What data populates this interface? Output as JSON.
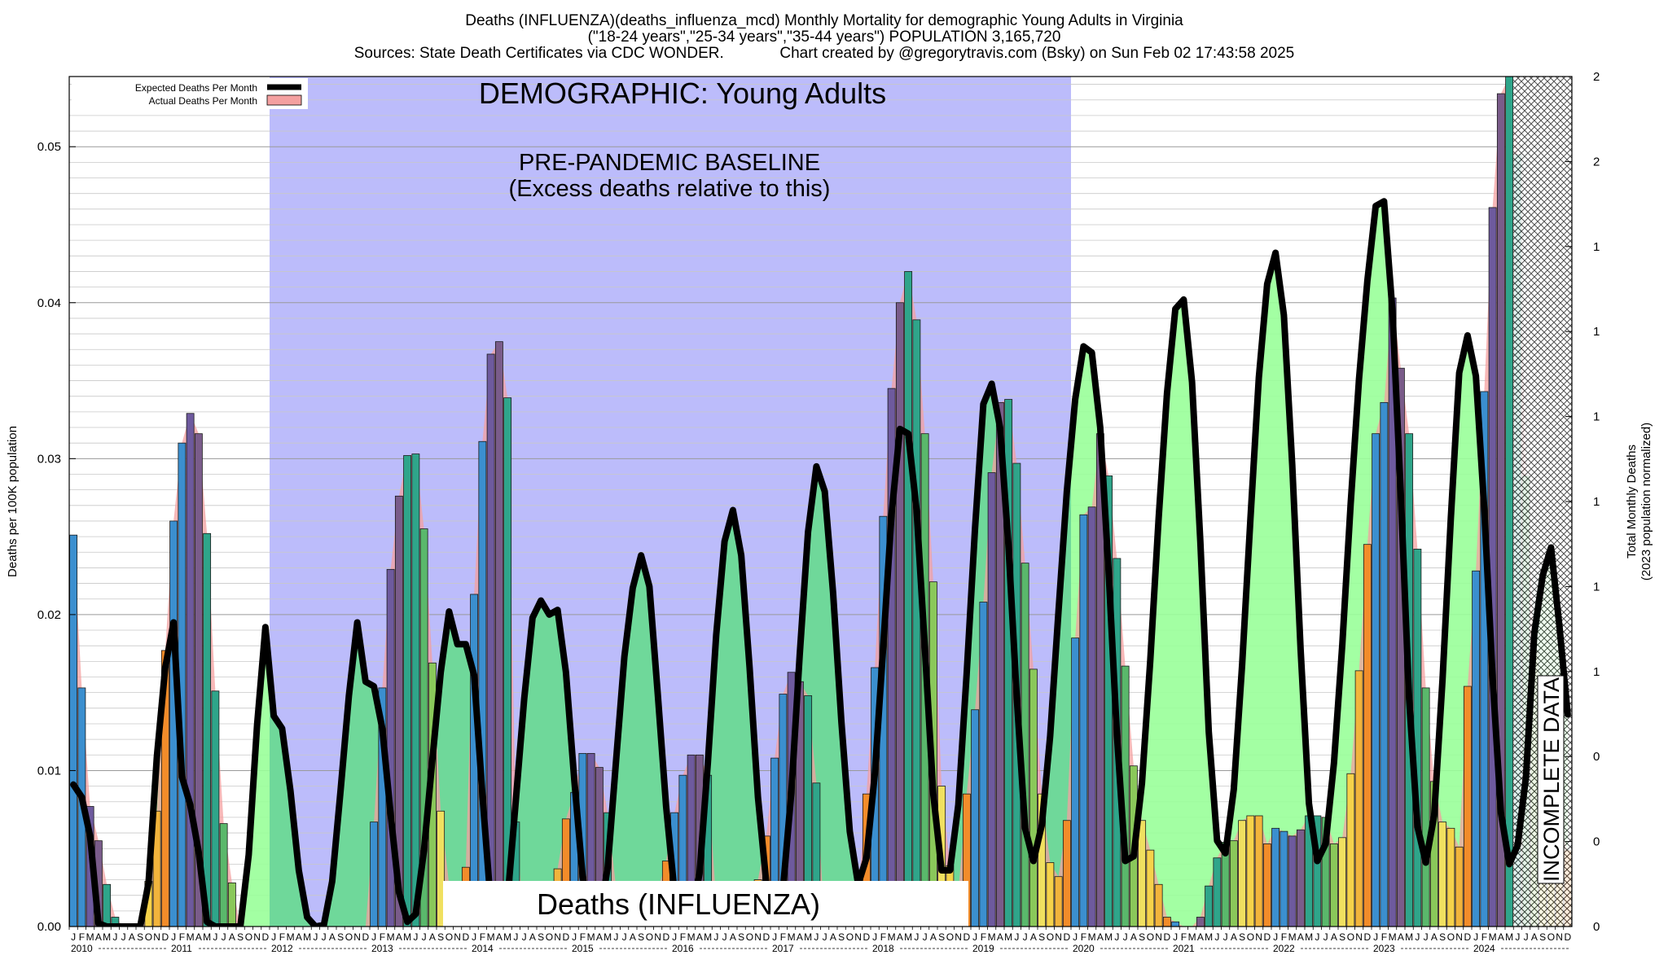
{
  "title": {
    "line1": "Deaths (INFLUENZA)(deaths_influenza_mcd) Monthly Mortality for demographic Young Adults in Virginia",
    "line2": "(\"18-24 years\",\"25-34 years\",\"35-44 years\") POPULATION 3,165,720",
    "line3": "Sources: State Death Certificates via CDC WONDER.             Chart created by @gregorytravis.com (Bsky) on Sun Feb 02 17:43:58 2025"
  },
  "annotations": {
    "demographic": "DEMOGRAPHIC: Young Adults",
    "baseline_line1": "PRE-PANDEMIC BASELINE",
    "baseline_line2": "(Excess deaths relative to this)",
    "cause": "Deaths (INFLUENZA)",
    "incomplete": "INCOMPLETE DATA"
  },
  "legend": {
    "expected": "Expected Deaths Per Month",
    "actual": "Actual Deaths Per Month"
  },
  "colors": {
    "baseline_band": "#bcbcfb",
    "expected_line": "#000000",
    "actual_area": "#f4a0a0",
    "excess_fill": "#99ff99",
    "expected_fill_in_band": "#6fd89a"
  },
  "chart_data": {
    "type": "bar",
    "start": "2010-01",
    "end": "2024-12",
    "ylabel": "Deaths per 100K population",
    "y2label_line1": "Total Monthly Deaths",
    "y2label_line2": "(2023 population normalized)",
    "ylim": [
      0,
      0.0545
    ],
    "yticks": [
      "0.00",
      "0.01",
      "0.02",
      "0.03",
      "0.04",
      "0.05"
    ],
    "y2ticks": [
      "0",
      "0",
      "0",
      "1",
      "1",
      "1",
      "1",
      "1",
      "1",
      "2",
      "2"
    ],
    "month_letters": [
      "J",
      "F",
      "M",
      "A",
      "M",
      "J",
      "J",
      "A",
      "S",
      "O",
      "N",
      "D"
    ],
    "years": [
      "2010",
      "2011",
      "2012",
      "2013",
      "2014",
      "2015",
      "2016",
      "2017",
      "2018",
      "2019",
      "2020",
      "2021",
      "2022",
      "2023",
      "2024"
    ],
    "baseline_period": [
      "2012-01",
      "2019-12"
    ],
    "incomplete_period": [
      "2024-06",
      "2024-12"
    ],
    "grid": true,
    "legend_position": "top-left",
    "series": [
      {
        "name": "Actual Deaths Per Month",
        "values": [
          0.0251,
          0.0153,
          0.0077,
          0.0055,
          0.0027,
          0.0006,
          0,
          0,
          0,
          0.0029,
          0.0074,
          0.0177,
          0.026,
          0.031,
          0.0329,
          0.0316,
          0.0252,
          0.0151,
          0.0066,
          0.0028,
          0,
          0,
          0,
          0,
          0,
          0,
          0,
          0,
          0,
          0,
          0,
          0,
          0,
          0,
          0,
          0,
          0.0067,
          0.0153,
          0.0229,
          0.0276,
          0.0302,
          0.0303,
          0.0255,
          0.0169,
          0.0074,
          0.0027,
          0.0009,
          0.0038,
          0.0213,
          0.0311,
          0.0367,
          0.0375,
          0.0339,
          0.0067,
          0,
          0,
          0,
          0,
          0.0037,
          0.0069,
          0.0086,
          0.0111,
          0.0111,
          0.0102,
          0.0073,
          0.0025,
          0,
          0,
          0,
          0,
          0.0023,
          0.0042,
          0.0073,
          0.0097,
          0.011,
          0.011,
          0.0097,
          0.0015,
          0,
          0,
          0,
          0,
          0.003,
          0.0058,
          0.0108,
          0.0149,
          0.0163,
          0.0157,
          0.0148,
          0.0092,
          0,
          0,
          0,
          0,
          0.0021,
          0.0085,
          0.0166,
          0.0263,
          0.0345,
          0.04,
          0.042,
          0.0389,
          0.0316,
          0.0221,
          0.009,
          0.0039,
          0.0022,
          0.0085,
          0.0139,
          0.0208,
          0.0291,
          0.0336,
          0.0338,
          0.0297,
          0.0233,
          0.0165,
          0.0085,
          0.0041,
          0.0032,
          0.0068,
          0.0185,
          0.0264,
          0.0269,
          0.0316,
          0.0289,
          0.0236,
          0.0167,
          0.0103,
          0.0068,
          0.0049,
          0.0027,
          0.0006,
          0.0003,
          0,
          0,
          0.0006,
          0.0026,
          0.0044,
          0.0054,
          0.0055,
          0.0068,
          0.0071,
          0.0071,
          0.0053,
          0.0063,
          0.0061,
          0.0058,
          0.0062,
          0.0071,
          0.0071,
          0.007,
          0.0053,
          0.0057,
          0.0098,
          0.0164,
          0.0245,
          0.0316,
          0.0336,
          0.0403,
          0.0358,
          0.0316,
          0.0242,
          0.0153,
          0.0093,
          0.0067,
          0.0063,
          0.0051,
          0.0154,
          0.0228,
          0.0343,
          0.0461,
          0.0534,
          0.0545,
          0.0495,
          0.0289,
          0.0176,
          0.0115,
          0.0088,
          0.0066,
          0.0049
        ]
      },
      {
        "name": "Expected Deaths Per Month",
        "values": [
          0.0091,
          0.0083,
          0.0058,
          0.0002,
          0,
          0,
          0,
          0,
          0,
          0.0028,
          0.0109,
          0.0166,
          0.0195,
          0.0096,
          0.0078,
          0.0048,
          0.0003,
          0,
          0,
          0,
          0,
          0.0046,
          0.0129,
          0.0192,
          0.0135,
          0.0127,
          0.0087,
          0.0036,
          0.0006,
          0,
          0.0001,
          0.0029,
          0.0087,
          0.0148,
          0.0195,
          0.0157,
          0.0154,
          0.0127,
          0.0072,
          0.0022,
          0.0003,
          0.0008,
          0.0049,
          0.0107,
          0.0163,
          0.0202,
          0.0181,
          0.0181,
          0.0161,
          0.0084,
          0.0014,
          0,
          0.0017,
          0.0081,
          0.0146,
          0.0198,
          0.0209,
          0.02,
          0.0203,
          0.0163,
          0.0094,
          0.0032,
          0.0001,
          0.0004,
          0.0038,
          0.0106,
          0.0173,
          0.0217,
          0.0238,
          0.0218,
          0.0149,
          0.0077,
          0.0022,
          0.0003,
          0.0004,
          0.0034,
          0.0105,
          0.0187,
          0.0247,
          0.0267,
          0.0238,
          0.0166,
          0.0083,
          0.0028,
          0.0006,
          0.0024,
          0.0086,
          0.0174,
          0.0253,
          0.0295,
          0.0279,
          0.0214,
          0.0131,
          0.0061,
          0.0027,
          0.0044,
          0.0098,
          0.0179,
          0.0264,
          0.0319,
          0.0316,
          0.0267,
          0.0178,
          0.0085,
          0.0036,
          0.0036,
          0.0078,
          0.0162,
          0.0255,
          0.0335,
          0.0348,
          0.032,
          0.0245,
          0.0147,
          0.0063,
          0.0042,
          0.0065,
          0.0122,
          0.0202,
          0.0279,
          0.0338,
          0.0372,
          0.0368,
          0.032,
          0.0228,
          0.0123,
          0.0042,
          0.0045,
          0.0092,
          0.0171,
          0.0262,
          0.0342,
          0.0396,
          0.0402,
          0.0349,
          0.0246,
          0.0125,
          0.0055,
          0.0047,
          0.0088,
          0.0168,
          0.0262,
          0.0352,
          0.0412,
          0.0432,
          0.0392,
          0.0296,
          0.0178,
          0.0079,
          0.0042,
          0.0053,
          0.0105,
          0.0181,
          0.0271,
          0.0351,
          0.0414,
          0.0462,
          0.0465,
          0.0395,
          0.0278,
          0.0146,
          0.0064,
          0.0041,
          0.0071,
          0.0158,
          0.0262,
          0.0355,
          0.0379,
          0.0353,
          0.0268,
          0.016,
          0.0073,
          0.004,
          0.0052,
          0.0096,
          0.0188,
          0.0225,
          0.0243,
          0.0193,
          0.0136
        ]
      }
    ]
  }
}
